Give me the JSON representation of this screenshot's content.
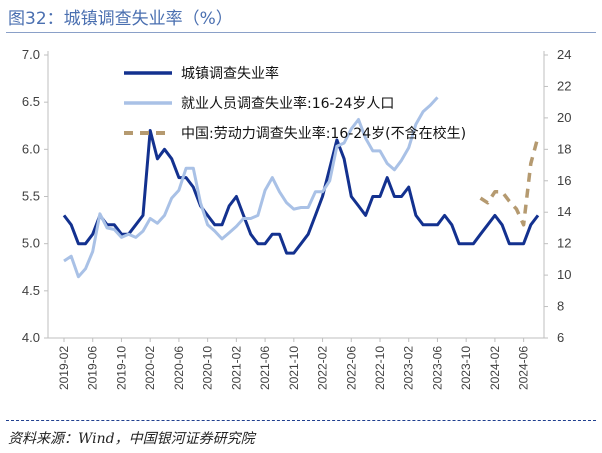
{
  "title": "图32：城镇调查失业率（%）",
  "source": "资料来源：Wind，中国银河证券研究院",
  "colors": {
    "series1": "#13318f",
    "series2": "#a9c1e6",
    "series3": "#b59a70",
    "axis": "#bfbfbf",
    "title": "#4a6fb0"
  },
  "chart_data": {
    "type": "line",
    "xlabel": "",
    "ylabel": "",
    "ylim_left": [
      4.0,
      7.0
    ],
    "ylim_right": [
      6,
      24
    ],
    "left_ticks": [
      "4.0",
      "4.5",
      "5.0",
      "5.5",
      "6.0",
      "6.5",
      "7.0"
    ],
    "right_ticks": [
      "6",
      "8",
      "10",
      "12",
      "14",
      "16",
      "18",
      "20",
      "22",
      "24"
    ],
    "x_start": "2019-02",
    "x_tick_labels": [
      "2019-02",
      "2019-06",
      "2019-10",
      "2020-02",
      "2020-06",
      "2020-10",
      "2021-02",
      "2021-06",
      "2021-10",
      "2022-02",
      "2022-06",
      "2022-10",
      "2023-02",
      "2023-06",
      "2023-10",
      "2024-02",
      "2024-06"
    ],
    "grid": false,
    "legend_position": "top-left",
    "series": [
      {
        "name": "城镇调查失业率",
        "axis": "left",
        "style": "solid",
        "x": [
          "2019-02",
          "2019-03",
          "2019-04",
          "2019-05",
          "2019-06",
          "2019-07",
          "2019-08",
          "2019-09",
          "2019-10",
          "2019-11",
          "2019-12",
          "2020-01",
          "2020-02",
          "2020-03",
          "2020-04",
          "2020-05",
          "2020-06",
          "2020-07",
          "2020-08",
          "2020-09",
          "2020-10",
          "2020-11",
          "2020-12",
          "2021-01",
          "2021-02",
          "2021-03",
          "2021-04",
          "2021-05",
          "2021-06",
          "2021-07",
          "2021-08",
          "2021-09",
          "2021-10",
          "2021-11",
          "2021-12",
          "2022-01",
          "2022-02",
          "2022-03",
          "2022-04",
          "2022-05",
          "2022-06",
          "2022-07",
          "2022-08",
          "2022-09",
          "2022-10",
          "2022-11",
          "2022-12",
          "2023-01",
          "2023-02",
          "2023-03",
          "2023-04",
          "2023-05",
          "2023-06",
          "2023-07",
          "2023-08",
          "2023-09",
          "2023-10",
          "2023-11",
          "2023-12",
          "2024-01",
          "2024-02",
          "2024-03",
          "2024-04",
          "2024-05",
          "2024-06",
          "2024-07",
          "2024-08"
        ],
        "values": [
          5.3,
          5.2,
          5.0,
          5.0,
          5.1,
          5.3,
          5.2,
          5.2,
          5.1,
          5.1,
          5.2,
          5.3,
          6.2,
          5.9,
          6.0,
          5.9,
          5.7,
          5.7,
          5.6,
          5.4,
          5.3,
          5.2,
          5.2,
          5.4,
          5.5,
          5.3,
          5.1,
          5.0,
          5.0,
          5.1,
          5.1,
          4.9,
          4.9,
          5.0,
          5.1,
          5.3,
          5.5,
          5.8,
          6.1,
          5.9,
          5.5,
          5.4,
          5.3,
          5.5,
          5.5,
          5.7,
          5.5,
          5.5,
          5.6,
          5.3,
          5.2,
          5.2,
          5.2,
          5.3,
          5.2,
          5.0,
          5.0,
          5.0,
          5.1,
          5.2,
          5.3,
          5.2,
          5.0,
          5.0,
          5.0,
          5.2,
          5.3
        ]
      },
      {
        "name": "就业人员调查失业率:16-24岁人口",
        "axis": "right",
        "style": "solid",
        "x": [
          "2019-02",
          "2019-03",
          "2019-04",
          "2019-05",
          "2019-06",
          "2019-07",
          "2019-08",
          "2019-09",
          "2019-10",
          "2019-11",
          "2019-12",
          "2020-01",
          "2020-02",
          "2020-03",
          "2020-04",
          "2020-05",
          "2020-06",
          "2020-07",
          "2020-08",
          "2020-09",
          "2020-10",
          "2020-11",
          "2020-12",
          "2021-01",
          "2021-02",
          "2021-03",
          "2021-04",
          "2021-05",
          "2021-06",
          "2021-07",
          "2021-08",
          "2021-09",
          "2021-10",
          "2021-11",
          "2021-12",
          "2022-01",
          "2022-02",
          "2022-03",
          "2022-04",
          "2022-05",
          "2022-06",
          "2022-07",
          "2022-08",
          "2022-09",
          "2022-10",
          "2022-11",
          "2022-12",
          "2023-01",
          "2023-02",
          "2023-03",
          "2023-04",
          "2023-05",
          "2023-06"
        ],
        "values": [
          10.9,
          11.2,
          9.9,
          10.4,
          11.5,
          13.9,
          13.0,
          12.9,
          12.4,
          12.6,
          12.4,
          12.8,
          13.6,
          13.3,
          13.8,
          14.9,
          15.4,
          16.8,
          16.8,
          14.6,
          13.2,
          12.8,
          12.3,
          12.7,
          13.1,
          13.6,
          13.6,
          13.8,
          15.4,
          16.2,
          15.3,
          14.6,
          14.2,
          14.3,
          14.3,
          15.3,
          15.3,
          16.0,
          18.2,
          18.4,
          19.3,
          19.9,
          18.7,
          17.9,
          17.9,
          17.1,
          16.7,
          17.3,
          18.1,
          19.6,
          20.4,
          20.8,
          21.3
        ]
      },
      {
        "name": "中国:劳动力调查失业率:16-24岁(不含在校生)",
        "axis": "right",
        "style": "dashed",
        "x": [
          "2023-12",
          "2024-01",
          "2024-02",
          "2024-03",
          "2024-04",
          "2024-05",
          "2024-06",
          "2024-07",
          "2024-08"
        ],
        "values": [
          14.9,
          14.6,
          15.3,
          15.3,
          14.7,
          14.2,
          13.2,
          17.1,
          18.8
        ]
      }
    ]
  }
}
